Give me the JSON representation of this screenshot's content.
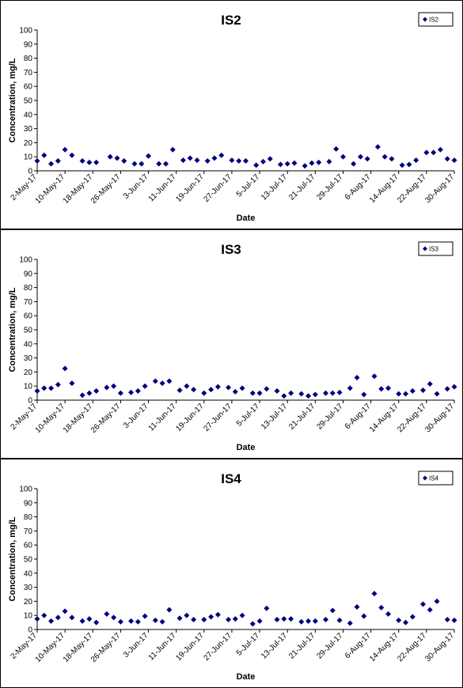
{
  "chart_data": [
    {
      "type": "scatter",
      "title": "IS2",
      "xlabel": "Date",
      "ylabel": "Concentration, mg/L",
      "ylim": [
        0,
        100
      ],
      "yticks": [
        0,
        10,
        20,
        30,
        40,
        50,
        60,
        70,
        80,
        90,
        100
      ],
      "xlim": [
        "2017-05-02",
        "2017-08-30"
      ],
      "xtick_labels": [
        "2-May-17",
        "10-May-17",
        "18-May-17",
        "26-May-17",
        "3-Jun-17",
        "11-Jun-17",
        "19-Jun-17",
        "27-Jun-17",
        "5-Jul-17",
        "13-Jul-17",
        "21-Jul-17",
        "29-Jul-17",
        "6-Aug-17",
        "14-Aug-17",
        "22-Aug-17",
        "30-Aug-17"
      ],
      "grid": false,
      "legend": "top-right",
      "series": [
        {
          "name": "IS2",
          "color": "#000080",
          "marker": "diamond",
          "points": [
            [
              "2017-05-02",
              7
            ],
            [
              "2017-05-04",
              11
            ],
            [
              "2017-05-06",
              5
            ],
            [
              "2017-05-08",
              7
            ],
            [
              "2017-05-10",
              15
            ],
            [
              "2017-05-12",
              11
            ],
            [
              "2017-05-15",
              7
            ],
            [
              "2017-05-17",
              6
            ],
            [
              "2017-05-19",
              6
            ],
            [
              "2017-05-23",
              10
            ],
            [
              "2017-05-25",
              9
            ],
            [
              "2017-05-27",
              7
            ],
            [
              "2017-05-30",
              5
            ],
            [
              "2017-06-01",
              5
            ],
            [
              "2017-06-03",
              10.5
            ],
            [
              "2017-06-06",
              5
            ],
            [
              "2017-06-08",
              5
            ],
            [
              "2017-06-10",
              15
            ],
            [
              "2017-06-13",
              7.5
            ],
            [
              "2017-06-15",
              9
            ],
            [
              "2017-06-17",
              7.5
            ],
            [
              "2017-06-20",
              7
            ],
            [
              "2017-06-22",
              9
            ],
            [
              "2017-06-24",
              11
            ],
            [
              "2017-06-27",
              7.5
            ],
            [
              "2017-06-29",
              7
            ],
            [
              "2017-07-01",
              7
            ],
            [
              "2017-07-04",
              4
            ],
            [
              "2017-07-06",
              6.5
            ],
            [
              "2017-07-08",
              8.5
            ],
            [
              "2017-07-11",
              4.5
            ],
            [
              "2017-07-13",
              5
            ],
            [
              "2017-07-15",
              5.5
            ],
            [
              "2017-07-18",
              3.5
            ],
            [
              "2017-07-20",
              5.5
            ],
            [
              "2017-07-22",
              6
            ],
            [
              "2017-07-25",
              6.5
            ],
            [
              "2017-07-27",
              15.5
            ],
            [
              "2017-07-29",
              10
            ],
            [
              "2017-08-01",
              5
            ],
            [
              "2017-08-03",
              10
            ],
            [
              "2017-08-05",
              8.5
            ],
            [
              "2017-08-08",
              17
            ],
            [
              "2017-08-10",
              10
            ],
            [
              "2017-08-12",
              8.5
            ],
            [
              "2017-08-15",
              4
            ],
            [
              "2017-08-17",
              4.5
            ],
            [
              "2017-08-19",
              7.5
            ],
            [
              "2017-08-22",
              13
            ],
            [
              "2017-08-24",
              13
            ],
            [
              "2017-08-26",
              15
            ],
            [
              "2017-08-28",
              8.5
            ],
            [
              "2017-08-30",
              7.5
            ]
          ]
        }
      ]
    },
    {
      "type": "scatter",
      "title": "IS3",
      "xlabel": "Date",
      "ylabel": "Concentration, mg/L",
      "ylim": [
        0,
        100
      ],
      "yticks": [
        0,
        10,
        20,
        30,
        40,
        50,
        60,
        70,
        80,
        90,
        100
      ],
      "xlim": [
        "2017-05-02",
        "2017-08-30"
      ],
      "xtick_labels": [
        "2-May-17",
        "10-May-17",
        "18-May-17",
        "26-May-17",
        "3-Jun-17",
        "11-Jun-17",
        "19-Jun-17",
        "27-Jun-17",
        "5-Jul-17",
        "13-Jul-17",
        "21-Jul-17",
        "29-Jul-17",
        "6-Aug-17",
        "14-Aug-17",
        "22-Aug-17",
        "30-Aug-17"
      ],
      "grid": false,
      "legend": "top-right",
      "series": [
        {
          "name": "IS3",
          "color": "#000080",
          "marker": "diamond",
          "points": [
            [
              "2017-05-02",
              6.5
            ],
            [
              "2017-05-04",
              8.5
            ],
            [
              "2017-05-06",
              8.5
            ],
            [
              "2017-05-08",
              11
            ],
            [
              "2017-05-10",
              22.5
            ],
            [
              "2017-05-12",
              12
            ],
            [
              "2017-05-15",
              3.5
            ],
            [
              "2017-05-17",
              5
            ],
            [
              "2017-05-19",
              6.5
            ],
            [
              "2017-05-22",
              9
            ],
            [
              "2017-05-24",
              10
            ],
            [
              "2017-05-26",
              5
            ],
            [
              "2017-05-29",
              5.5
            ],
            [
              "2017-05-31",
              6.5
            ],
            [
              "2017-06-02",
              10
            ],
            [
              "2017-06-05",
              13.5
            ],
            [
              "2017-06-07",
              12
            ],
            [
              "2017-06-09",
              13.5
            ],
            [
              "2017-06-12",
              7
            ],
            [
              "2017-06-14",
              10
            ],
            [
              "2017-06-16",
              7.5
            ],
            [
              "2017-06-19",
              5
            ],
            [
              "2017-06-21",
              7.5
            ],
            [
              "2017-06-23",
              9.5
            ],
            [
              "2017-06-26",
              9
            ],
            [
              "2017-06-28",
              6
            ],
            [
              "2017-06-30",
              8.5
            ],
            [
              "2017-07-03",
              5
            ],
            [
              "2017-07-05",
              5
            ],
            [
              "2017-07-07",
              8
            ],
            [
              "2017-07-10",
              6.5
            ],
            [
              "2017-07-12",
              3
            ],
            [
              "2017-07-14",
              5
            ],
            [
              "2017-07-17",
              4.5
            ],
            [
              "2017-07-19",
              3
            ],
            [
              "2017-07-21",
              4
            ],
            [
              "2017-07-24",
              5
            ],
            [
              "2017-07-26",
              5
            ],
            [
              "2017-07-28",
              5.5
            ],
            [
              "2017-07-31",
              8.5
            ],
            [
              "2017-08-02",
              16
            ],
            [
              "2017-08-04",
              4
            ],
            [
              "2017-08-07",
              17
            ],
            [
              "2017-08-09",
              8
            ],
            [
              "2017-08-11",
              8.5
            ],
            [
              "2017-08-14",
              4.5
            ],
            [
              "2017-08-16",
              4.5
            ],
            [
              "2017-08-18",
              6.5
            ],
            [
              "2017-08-21",
              7
            ],
            [
              "2017-08-23",
              11.5
            ],
            [
              "2017-08-25",
              4.5
            ],
            [
              "2017-08-28",
              8
            ],
            [
              "2017-08-30",
              9.5
            ]
          ]
        }
      ]
    },
    {
      "type": "scatter",
      "title": "IS4",
      "xlabel": "Date",
      "ylabel": "Concentration, mg/L",
      "ylim": [
        0,
        100
      ],
      "yticks": [
        0,
        10,
        20,
        30,
        40,
        50,
        60,
        70,
        80,
        90,
        100
      ],
      "xlim": [
        "2017-05-02",
        "2017-08-30"
      ],
      "xtick_labels": [
        "2-May-17",
        "10-May-17",
        "18-May-17",
        "26-May-17",
        "3-Jun-17",
        "11-Jun-17",
        "19-Jun-17",
        "27-Jun-17",
        "5-Jul-17",
        "13-Jul-17",
        "21-Jul-17",
        "29-Jul-17",
        "6-Aug-17",
        "14-Aug-17",
        "22-Aug-17",
        "30-Aug-17"
      ],
      "grid": false,
      "legend": "top-right",
      "series": [
        {
          "name": "IS4",
          "color": "#000080",
          "marker": "diamond",
          "points": [
            [
              "2017-05-02",
              7.5
            ],
            [
              "2017-05-04",
              10
            ],
            [
              "2017-05-06",
              6
            ],
            [
              "2017-05-08",
              8.5
            ],
            [
              "2017-05-10",
              13
            ],
            [
              "2017-05-12",
              8.5
            ],
            [
              "2017-05-15",
              6
            ],
            [
              "2017-05-17",
              7.5
            ],
            [
              "2017-05-19",
              5
            ],
            [
              "2017-05-22",
              11
            ],
            [
              "2017-05-24",
              8.5
            ],
            [
              "2017-05-26",
              5.5
            ],
            [
              "2017-05-29",
              6
            ],
            [
              "2017-05-31",
              5.5
            ],
            [
              "2017-06-02",
              9.5
            ],
            [
              "2017-06-05",
              6.5
            ],
            [
              "2017-06-07",
              5.5
            ],
            [
              "2017-06-09",
              14
            ],
            [
              "2017-06-12",
              8
            ],
            [
              "2017-06-14",
              10
            ],
            [
              "2017-06-16",
              7
            ],
            [
              "2017-06-19",
              7
            ],
            [
              "2017-06-21",
              9
            ],
            [
              "2017-06-23",
              10.5
            ],
            [
              "2017-06-26",
              7
            ],
            [
              "2017-06-28",
              7.5
            ],
            [
              "2017-06-30",
              10
            ],
            [
              "2017-07-03",
              4
            ],
            [
              "2017-07-05",
              6
            ],
            [
              "2017-07-07",
              15
            ],
            [
              "2017-07-10",
              7
            ],
            [
              "2017-07-12",
              7.5
            ],
            [
              "2017-07-14",
              7.5
            ],
            [
              "2017-07-17",
              5.5
            ],
            [
              "2017-07-19",
              6
            ],
            [
              "2017-07-21",
              6
            ],
            [
              "2017-07-24",
              7
            ],
            [
              "2017-07-26",
              13.5
            ],
            [
              "2017-07-28",
              6.5
            ],
            [
              "2017-07-31",
              4.5
            ],
            [
              "2017-08-02",
              16
            ],
            [
              "2017-08-04",
              9.5
            ],
            [
              "2017-08-07",
              25.5
            ],
            [
              "2017-08-09",
              15.5
            ],
            [
              "2017-08-11",
              11
            ],
            [
              "2017-08-14",
              6.5
            ],
            [
              "2017-08-16",
              5
            ],
            [
              "2017-08-18",
              9
            ],
            [
              "2017-08-21",
              18
            ],
            [
              "2017-08-23",
              14
            ],
            [
              "2017-08-25",
              20
            ],
            [
              "2017-08-28",
              7
            ],
            [
              "2017-08-30",
              6.5
            ]
          ]
        }
      ]
    }
  ]
}
